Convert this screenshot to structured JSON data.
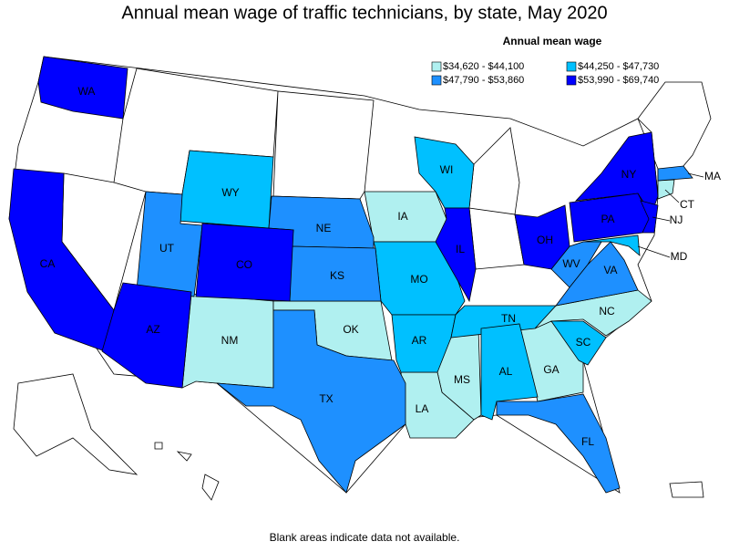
{
  "title": "Annual mean wage of traffic technicians, by state, May 2020",
  "legend": {
    "title": "Annual mean wage",
    "items": [
      {
        "label": "$34,620 - $44,100",
        "color": "#b0f0f0",
        "states": [
          "IA",
          "NM",
          "OK",
          "MS",
          "LA",
          "GA",
          "NC",
          "CT"
        ]
      },
      {
        "label": "$44,250 - $47,730",
        "color": "#00c0ff",
        "states": [
          "WY",
          "WI",
          "MO",
          "AR",
          "TN",
          "AL",
          "SC",
          "MD"
        ]
      },
      {
        "label": "$47,790 - $53,860",
        "color": "#1e90ff",
        "states": [
          "UT",
          "NE",
          "KS",
          "TX",
          "FL",
          "WV",
          "VA",
          "MA"
        ]
      },
      {
        "label": "$53,990 - $69,740",
        "color": "#0000ff",
        "states": [
          "WA",
          "CA",
          "AZ",
          "CO",
          "IL",
          "OH",
          "NY",
          "PA",
          "NJ"
        ]
      }
    ]
  },
  "footnote": "Blank areas indicate data not available."
}
